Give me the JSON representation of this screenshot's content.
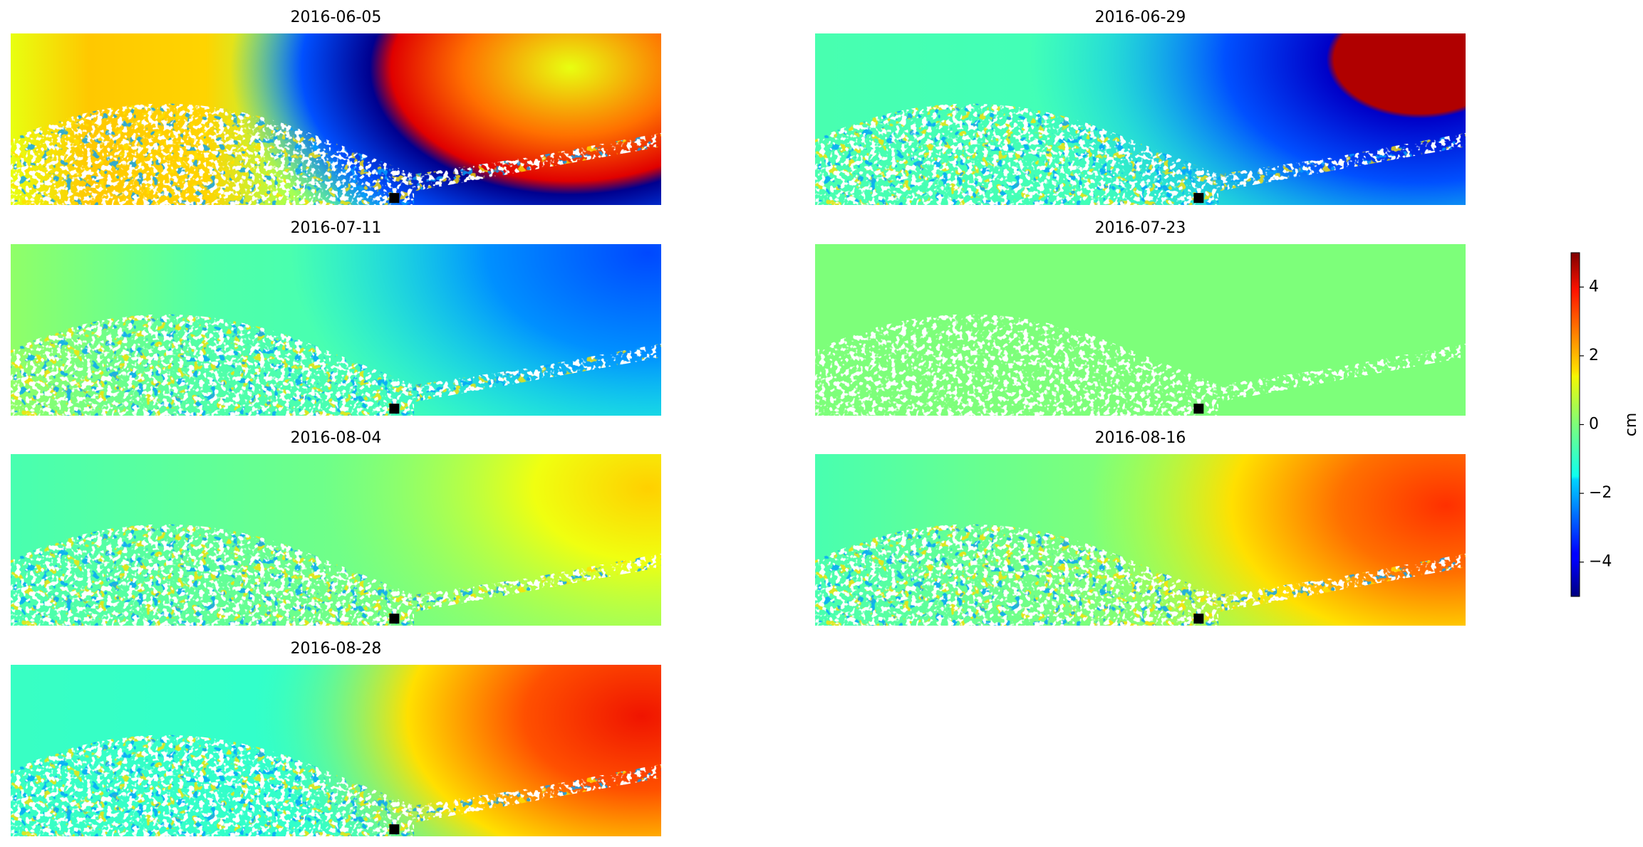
{
  "chart_data": {
    "type": "heatmap",
    "panels": [
      {
        "title": "2016-06-05"
      },
      {
        "title": "2016-06-29"
      },
      {
        "title": "2016-07-11"
      },
      {
        "title": "2016-07-23"
      },
      {
        "title": "2016-08-04"
      },
      {
        "title": "2016-08-16"
      },
      {
        "title": "2016-08-28"
      }
    ],
    "colorbar": {
      "label": "cm",
      "lim": [
        -5,
        5
      ],
      "colormap": "jet",
      "ticks": [
        {
          "value": -4,
          "label": "−4"
        },
        {
          "value": -2,
          "label": "−2"
        },
        0,
        2,
        4
      ]
    }
  }
}
